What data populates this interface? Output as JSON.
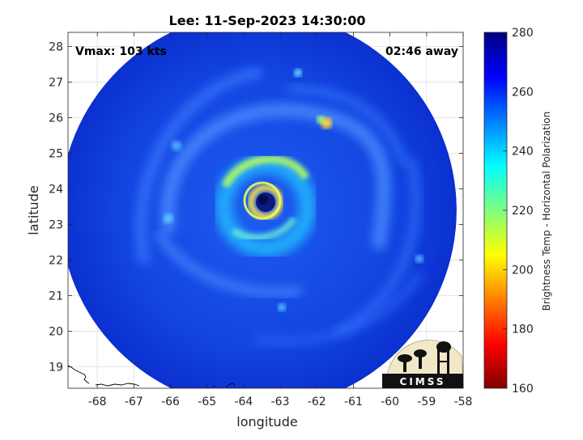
{
  "chart_data": {
    "type": "heatmap",
    "title": "Lee: 11-Sep-2023 14:30:00",
    "xlabel": "longitude",
    "ylabel": "latitude",
    "xlim": [
      -68.8,
      -58
    ],
    "ylim": [
      18.4,
      28.4
    ],
    "x_ticks": [
      -68,
      -67,
      -66,
      -65,
      -64,
      -63,
      -62,
      -61,
      -60,
      -59,
      -58
    ],
    "y_ticks": [
      19,
      20,
      21,
      22,
      23,
      24,
      25,
      26,
      27,
      28
    ],
    "grid": true,
    "annotations": {
      "vmax": "Vmax: 103 kts",
      "time_away": "02:46 away"
    },
    "storm_center": {
      "lon": -63.4,
      "lat": 23.4
    },
    "swath_center": {
      "lon": -63.6,
      "lat": 23.4
    },
    "colorbar": {
      "label": "Brightness Temp - Horizontal Polarization",
      "range": [
        160,
        280
      ],
      "ticks": [
        160,
        180,
        200,
        220,
        240,
        260,
        280
      ],
      "colormap": "jet"
    },
    "logo": "CIMSS"
  }
}
